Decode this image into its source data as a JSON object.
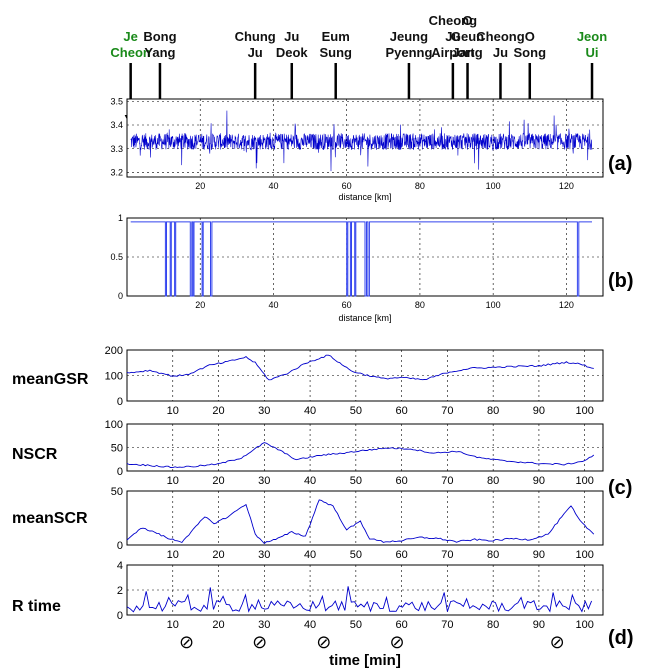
{
  "stations": [
    {
      "label": [
        "Je",
        "Cheon"
      ],
      "km": 1,
      "color": "#1a8a1a"
    },
    {
      "label": [
        "Bong",
        "Yang"
      ],
      "km": 9,
      "color": "#111111"
    },
    {
      "label": [
        "Chung",
        "Ju"
      ],
      "km": 35,
      "color": "#111111"
    },
    {
      "label": [
        "Ju",
        "Deok"
      ],
      "km": 45,
      "color": "#111111"
    },
    {
      "label": [
        "Eum",
        "Sung"
      ],
      "km": 57,
      "color": "#111111"
    },
    {
      "label": [
        "Jeung",
        "Pyenng"
      ],
      "km": 77,
      "color": "#111111"
    },
    {
      "label": [
        "Cheong",
        "Ju",
        "Airport"
      ],
      "km": 89,
      "color": "#111111"
    },
    {
      "label": [
        "O",
        "Geun",
        "Jang"
      ],
      "km": 93,
      "color": "#111111"
    },
    {
      "label": [
        "Cheong",
        "Ju"
      ],
      "km": 102,
      "color": "#111111"
    },
    {
      "label": [
        "O",
        "Song"
      ],
      "km": 110,
      "color": "#111111"
    },
    {
      "label": [
        "Jeon",
        "Ui"
      ],
      "km": 127,
      "color": "#1a8a1a"
    }
  ],
  "panel_labels": {
    "a": "(a)",
    "b": "(b)",
    "c": "(c)",
    "d": "(d)"
  },
  "symbol_minutes": [
    13,
    29,
    43,
    59,
    94
  ],
  "symbol_glyph": "⊘",
  "chart_data": [
    {
      "id": "a",
      "type": "line",
      "xlabel": "distance [km]",
      "ylabel": "",
      "xlim": [
        0,
        130
      ],
      "ylim": [
        3.18,
        3.51
      ],
      "xticks": [
        20,
        40,
        60,
        80,
        100,
        120
      ],
      "yticks": [
        3.2,
        3.3,
        3.4,
        3.5
      ],
      "grid": true,
      "series_color": "#0000cc",
      "x_range": [
        1,
        127
      ],
      "baseline": 3.33,
      "noise": 0.035
    },
    {
      "id": "b",
      "type": "line",
      "xlabel": "distance [km]",
      "ylabel": "",
      "xlim": [
        0,
        130
      ],
      "ylim": [
        0,
        1
      ],
      "xticks": [
        20,
        40,
        60,
        80,
        100,
        120
      ],
      "yticks": [
        0,
        0.5,
        1
      ],
      "ytick_labels": [
        "0",
        "0.5",
        "1"
      ],
      "grid": true,
      "series_color": "#3344ee",
      "x_range": [
        1,
        127
      ],
      "high": 0.95,
      "zero_segments": [
        [
          10.5,
          10.8
        ],
        [
          11.8,
          12.1
        ],
        [
          13.0,
          13.3
        ],
        [
          17.3,
          17.7
        ],
        [
          18.0,
          18.3
        ],
        [
          20.5,
          20.8
        ],
        [
          22.8,
          23.2
        ],
        [
          60.0,
          60.3
        ],
        [
          61.0,
          61.3
        ],
        [
          62.2,
          62.5
        ],
        [
          65.0,
          65.4
        ],
        [
          65.8,
          66.2
        ],
        [
          123.0,
          123.4
        ]
      ]
    },
    {
      "id": "meanGSR",
      "type": "line",
      "ylabel": "meanGSR",
      "xlim": [
        0,
        104
      ],
      "ylim": [
        0,
        200
      ],
      "xticks": [
        10,
        20,
        30,
        40,
        50,
        60,
        70,
        80,
        90,
        100
      ],
      "yticks": [
        0,
        100,
        200
      ],
      "grid": true,
      "series_color": "#0000cc",
      "x": [
        0,
        5,
        10,
        13,
        18,
        21,
        26,
        28,
        31,
        35,
        39,
        44,
        49,
        52,
        56,
        60,
        65,
        70,
        75,
        80,
        86,
        90,
        96,
        99,
        102
      ],
      "y": [
        110,
        120,
        98,
        102,
        140,
        150,
        172,
        150,
        82,
        108,
        148,
        180,
        118,
        103,
        88,
        92,
        83,
        112,
        128,
        132,
        136,
        138,
        152,
        145,
        128
      ]
    },
    {
      "id": "NSCR",
      "type": "line",
      "ylabel": "NSCR",
      "xlim": [
        0,
        104
      ],
      "ylim": [
        0,
        100
      ],
      "xticks": [
        10,
        20,
        30,
        40,
        50,
        60,
        70,
        80,
        90,
        100
      ],
      "yticks": [
        0,
        50,
        100
      ],
      "grid": true,
      "series_color": "#0000cc",
      "x": [
        0,
        5,
        10,
        15,
        20,
        25,
        30,
        33,
        37,
        42,
        47,
        52,
        57,
        62,
        67,
        72,
        77,
        82,
        87,
        92,
        96,
        100,
        102
      ],
      "y": [
        15,
        12,
        8,
        10,
        15,
        28,
        60,
        46,
        24,
        33,
        38,
        44,
        49,
        47,
        38,
        42,
        28,
        22,
        18,
        15,
        14,
        22,
        34
      ]
    },
    {
      "id": "meanSCR",
      "type": "line",
      "ylabel": "meanSCR",
      "xlim": [
        0,
        104
      ],
      "ylim": [
        0,
        50
      ],
      "xticks": [
        10,
        20,
        30,
        40,
        50,
        60,
        70,
        80,
        90,
        100
      ],
      "yticks": [
        0,
        50
      ],
      "grid": true,
      "series_color": "#0000cc",
      "x": [
        0,
        3,
        6,
        9,
        12,
        14,
        17,
        19,
        22,
        26,
        28,
        30,
        33,
        36,
        39,
        42,
        45,
        48,
        51,
        53,
        56,
        60,
        64,
        68,
        72,
        76,
        80,
        84,
        88,
        92,
        95,
        97,
        99,
        102
      ],
      "y": [
        4,
        16,
        12,
        6,
        3,
        12,
        26,
        20,
        26,
        38,
        10,
        2,
        6,
        12,
        8,
        42,
        36,
        14,
        22,
        6,
        3,
        4,
        7,
        6,
        3,
        5,
        4,
        6,
        5,
        10,
        26,
        36,
        22,
        10
      ]
    },
    {
      "id": "Rtime",
      "type": "line",
      "ylabel": "R time",
      "xlim": [
        0,
        104
      ],
      "ylim": [
        0,
        4
      ],
      "xticks": [
        10,
        20,
        30,
        40,
        50,
        60,
        70,
        80,
        90,
        100
      ],
      "yticks": [
        0,
        2,
        4
      ],
      "grid": true,
      "series_color": "#0000cc",
      "xlabel": "time [min]",
      "base": 0.7,
      "noise": 0.45,
      "spikes": [
        [
          4,
          1.9
        ],
        [
          9,
          1.4
        ],
        [
          13,
          1.6
        ],
        [
          18,
          2.2
        ],
        [
          21,
          1.5
        ],
        [
          26,
          1.6
        ],
        [
          29,
          1.2
        ],
        [
          43,
          1.5
        ],
        [
          48,
          2.3
        ],
        [
          57,
          1.4
        ],
        [
          69,
          1.8
        ],
        [
          74,
          1.3
        ],
        [
          86,
          1.4
        ],
        [
          93,
          1.8
        ],
        [
          97,
          1.6
        ],
        [
          100,
          1.1
        ]
      ]
    }
  ]
}
